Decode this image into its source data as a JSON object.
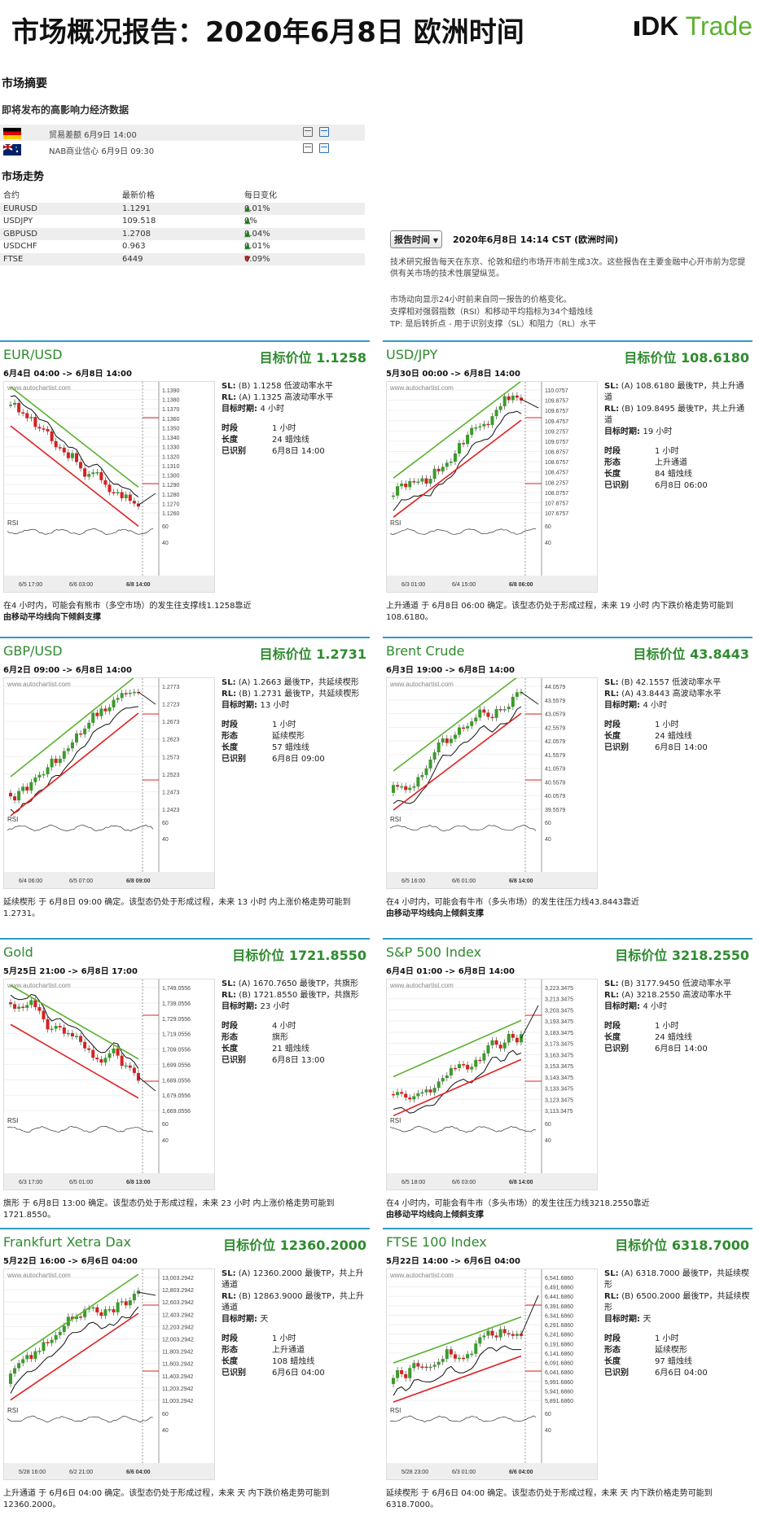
{
  "header": {
    "title": "市场概况报告：2020年6月8日 欧洲时间",
    "logo_dk": "DK",
    "logo_trade": "Trade"
  },
  "summary": {
    "title": "市场摘要",
    "events_title": "即将发布的高影响力经济数据",
    "events": [
      {
        "flag": "de",
        "text": "贸易差额 6月9日 14:00"
      },
      {
        "flag": "au",
        "text": "NAB商业信心 6月9日 09:30"
      }
    ]
  },
  "market": {
    "title": "市场走势",
    "headers": [
      "合约",
      "最新价格",
      "每日变化"
    ],
    "rows": [
      {
        "name": "EURUSD",
        "price": "1.1291",
        "dir": "up",
        "chg": "0.01%"
      },
      {
        "name": "USDJPY",
        "price": "109.518",
        "dir": "up",
        "chg": "0%"
      },
      {
        "name": "GBPUSD",
        "price": "1.2708",
        "dir": "up",
        "chg": "0.04%"
      },
      {
        "name": "USDCHF",
        "price": "0.963",
        "dir": "up",
        "chg": "0.01%"
      },
      {
        "name": "FTSE",
        "price": "6449",
        "dir": "dn",
        "chg": "0.09%"
      }
    ]
  },
  "report": {
    "button": "报告时间",
    "time": "2020年6月8日 14:14 CST (欧洲时间)",
    "note1": "技术研究报告每天在东京、伦敦和纽约市场开市前生成3次。这些报告在主要金融中心开市前为您提供有关市场的技术性展望纵览。",
    "note2": "市场动向显示24小时前来自同一报告的价格变化。",
    "note3": "支撑相对强弱指数（RSI）和移动平均指标为34个蜡烛线",
    "note4": "TP: 是后转折点 - 用于识别支撑（SL）和阻力（RL）水平"
  },
  "labels": {
    "tf": "时段",
    "form": "形态",
    "len": "长度",
    "id": "已识别",
    "target": "目标时期: ",
    "watermark": "www.autochartist.com",
    "rsi": "RSI",
    "rsi60": "60",
    "rsi40": "40"
  },
  "panels": [
    {
      "title": "EUR/USD",
      "target": "目标价位 1.1258",
      "range": "6月4日 04:00 -> 6月8日 14:00",
      "sl": "(B) 1.1258 低波动率水平",
      "rl": "(A) 1.1325 高波动率水平",
      "period": "4 小时",
      "kv": [
        [
          "时段",
          "1 小时"
        ],
        [
          "长度",
          "24 蜡烛线"
        ],
        [
          "已识别",
          "6月8日 14:00"
        ]
      ],
      "desc": "在4 小时内，可能会有熊市（多空市场）的发生往支撑线1.1258靠近",
      "desc2": "由移动平均线向下倾斜支撑",
      "yticks": [
        "1.1390",
        "1.1380",
        "1.1370",
        "1.1360",
        "1.1350",
        "1.1340",
        "1.1330",
        "1.1320",
        "1.1310",
        "1.1300",
        "1.1290",
        "1.1280",
        "1.1270",
        "1.1260"
      ],
      "xticks": [
        "6/5 17:00",
        "6/6 03:00",
        "6/8 14:00"
      ],
      "chart_data": {
        "type": "candlestick",
        "trend": "down",
        "color": "#d62020"
      }
    },
    {
      "title": "USD/JPY",
      "target": "目标价位 108.6180",
      "range": "5月30日 00:00 -> 6月8日 14:00",
      "sl": "(A) 108.6180 最後TP，共上升通道",
      "rl": "(B) 109.8495 最後TP，共上升通道",
      "period": "19 小时",
      "kv": [
        [
          "时段",
          "1 小时"
        ],
        [
          "形态",
          "上升通道"
        ],
        [
          "长度",
          "84 蜡烛线"
        ],
        [
          "已识别",
          "6月8日 06:00"
        ]
      ],
      "desc": "上升通道 于 6月8日 06:00 确定。该型态仍处于形成过程，未来 19 小时 内下跌价格走势可能到 108.6180。",
      "desc2": "",
      "yticks": [
        "110.0757",
        "109.8757",
        "109.6757",
        "109.4757",
        "109.2757",
        "109.0757",
        "108.8757",
        "108.6757",
        "108.4757",
        "108.2757",
        "108.0757",
        "107.8757",
        "107.6757"
      ],
      "xticks": [
        "6/3 01:00",
        "6/4 15:00",
        "6/8 06:00"
      ],
      "chart_data": {
        "type": "candlestick",
        "trend": "up",
        "color": "#2a9d2a"
      }
    },
    {
      "title": "GBP/USD",
      "target": "目标价位 1.2731",
      "range": "6月2日 09:00 -> 6月8日 14:00",
      "sl": "(A) 1.2663 最後TP，共延续楔形",
      "rl": "(B) 1.2731 最後TP，共延续楔形",
      "period": "13 小时",
      "kv": [
        [
          "时段",
          "1 小时"
        ],
        [
          "形态",
          "延续楔形"
        ],
        [
          "长度",
          "57 蜡烛线"
        ],
        [
          "已识别",
          "6月8日 09:00"
        ]
      ],
      "desc": "延续楔形 于 6月8日 09:00 确定。该型态仍处于形成过程，未来 13 小时 内上涨价格走势可能到 1.2731。",
      "desc2": "",
      "yticks": [
        "1.2773",
        "1.2723",
        "1.2673",
        "1.2623",
        "1.2573",
        "1.2523",
        "1.2473",
        "1.2423"
      ],
      "xticks": [
        "6/4 06:00",
        "6/5 07:00",
        "6/8 09:00"
      ],
      "chart_data": {
        "type": "candlestick",
        "trend": "up",
        "color": "#2a9d2a"
      }
    },
    {
      "title": "Brent Crude",
      "target": "目标价位 43.8443",
      "range": "6月3日 19:00 -> 6月8日 14:00",
      "sl": "(B) 42.1557 低波动率水平",
      "rl": "(A) 43.8443 高波动率水平",
      "period": "4 小时",
      "kv": [
        [
          "时段",
          "1 小时"
        ],
        [
          "长度",
          "24 蜡烛线"
        ],
        [
          "已识别",
          "6月8日 14:00"
        ]
      ],
      "desc": "在4 小时内，可能会有牛市（多头市场）的发生往压力线43.8443靠近",
      "desc2": "由移动平均线向上倾斜支撑",
      "yticks": [
        "44.0579",
        "43.5579",
        "43.0579",
        "42.5579",
        "42.0579",
        "41.5579",
        "41.0579",
        "40.5579",
        "40.0579",
        "39.5579"
      ],
      "xticks": [
        "6/5 16:00",
        "6/6 01:00",
        "6/8 14:00"
      ],
      "chart_data": {
        "type": "candlestick",
        "trend": "up",
        "color": "#2a9d2a"
      }
    },
    {
      "title": "Gold",
      "target": "目标价位 1721.8550",
      "range": "5月25日 21:00 -> 6月8日 17:00",
      "sl": "(A) 1670.7650 最後TP，共旗形",
      "rl": "(B) 1721.8550 最後TP，共旗形",
      "period": "23 小时",
      "kv": [
        [
          "时段",
          "4 小时"
        ],
        [
          "形态",
          "旗形"
        ],
        [
          "长度",
          "21 蜡烛线"
        ],
        [
          "已识别",
          "6月8日 13:00"
        ]
      ],
      "desc": "旗形 于 6月8日 13:00 确定。该型态仍处于形成过程，未来 23 小时 内上涨价格走势可能到 1721.8550。",
      "desc2": "",
      "yticks": [
        "1,749.0556",
        "1,739.0556",
        "1,729.0556",
        "1,719.0556",
        "1,709.0556",
        "1,699.0556",
        "1,689.0556",
        "1,679.0556",
        "1,669.0556"
      ],
      "xticks": [
        "6/3 17:00",
        "6/5 01:00",
        "6/8 13:00"
      ],
      "chart_data": {
        "type": "candlestick",
        "trend": "down",
        "color": "#d62020"
      }
    },
    {
      "title": "S&P 500 Index",
      "target": "目标价位 3218.2550",
      "range": "6月4日 01:00 -> 6月8日 14:00",
      "sl": "(B) 3177.9450 低波动率水平",
      "rl": "(A) 3218.2550 高波动率水平",
      "period": "4 小时",
      "kv": [
        [
          "时段",
          "1 小时"
        ],
        [
          "长度",
          "24 蜡烛线"
        ],
        [
          "已识别",
          "6月8日 14:00"
        ]
      ],
      "desc": "在4 小时内，可能会有牛市（多头市场）的发生往压力线3218.2550靠近",
      "desc2": "由移动平均线向上倾斜支撑",
      "yticks": [
        "3,223.3475",
        "3,213.3475",
        "3,203.3475",
        "3,193.3475",
        "3,183.3475",
        "3,173.3475",
        "3,163.3475",
        "3,153.3475",
        "3,143.3475",
        "3,133.3475",
        "3,123.3475",
        "3,113.3475"
      ],
      "xticks": [
        "6/5 18:00",
        "6/6 03:00",
        "6/8 14:00"
      ],
      "chart_data": {
        "type": "candlestick",
        "trend": "up",
        "color": "#2a9d2a"
      }
    },
    {
      "title": "Frankfurt Xetra Dax",
      "target": "目标价位 12360.2000",
      "range": "5月22日 16:00 -> 6月6日 04:00",
      "sl": "(A) 12360.2000 最後TP，共上升通道",
      "rl": "(B) 12863.9000 最後TP，共上升通道",
      "period": "天",
      "kv": [
        [
          "时段",
          "1 小时"
        ],
        [
          "形态",
          "上升通道"
        ],
        [
          "长度",
          "108 蜡烛线"
        ],
        [
          "已识别",
          "6月6日 04:00"
        ]
      ],
      "desc": "上升通道 于 6月6日 04:00 确定。该型态仍处于形成过程，未来 天 内下跌价格走势可能到 12360.2000。",
      "desc2": "",
      "yticks": [
        "13,003.2942",
        "12,803.2942",
        "12,603.2942",
        "12,403.2942",
        "12,203.2942",
        "12,003.2942",
        "11,803.2942",
        "11,603.2942",
        "11,403.2942",
        "11,203.2942",
        "11,003.2942"
      ],
      "xticks": [
        "5/28 16:00",
        "6/2 21:00",
        "6/6 04:00"
      ],
      "chart_data": {
        "type": "candlestick",
        "trend": "up",
        "color": "#2a9d2a"
      }
    },
    {
      "title": "FTSE 100 Index",
      "target": "目标价位 6318.7000",
      "range": "5月22日 14:00 -> 6月6日 04:00",
      "sl": "(A) 6318.7000 最後TP，共延续楔形",
      "rl": "(B) 6500.2000 最後TP，共延续楔形",
      "period": "天",
      "kv": [
        [
          "时段",
          "1 小时"
        ],
        [
          "形态",
          "延续楔形"
        ],
        [
          "长度",
          "97 蜡烛线"
        ],
        [
          "已识别",
          "6月6日 04:00"
        ]
      ],
      "desc": "延续楔形 于 6月6日 04:00 确定。该型态仍处于形成过程，未来 天 内下跌价格走势可能到 6318.7000。",
      "desc2": "",
      "yticks": [
        "6,541.6860",
        "6,491.6860",
        "6,441.6860",
        "6,391.6860",
        "6,341.6860",
        "6,291.6860",
        "6,241.6860",
        "6,191.6860",
        "6,141.6860",
        "6,091.6860",
        "6,041.6860",
        "5,991.6860",
        "5,941.6860",
        "5,891.6860"
      ],
      "xticks": [
        "5/28 23:00",
        "6/3 01:00",
        "6/6 04:00"
      ],
      "chart_data": {
        "type": "candlestick",
        "trend": "up",
        "color": "#2a9d2a"
      }
    }
  ]
}
